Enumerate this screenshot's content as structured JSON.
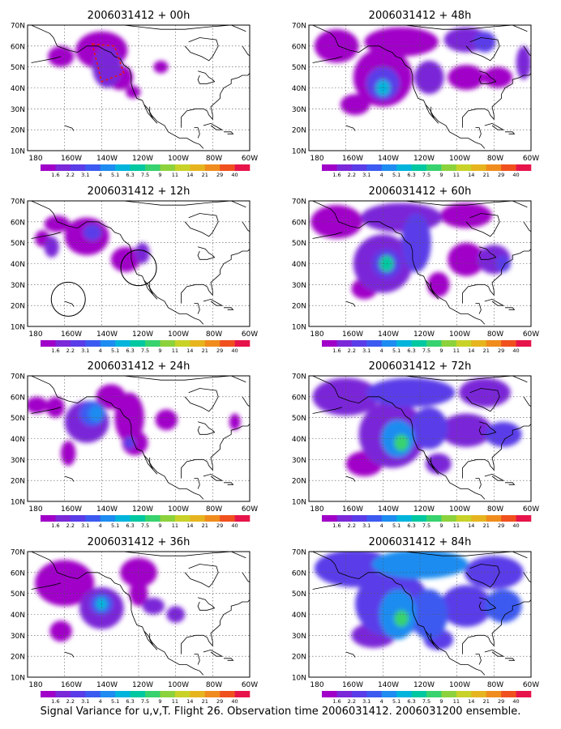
{
  "figure": {
    "caption": "Signal Variance for u,v,T. Flight 26. Observation time 2006031412. 2006031200 ensemble."
  },
  "axes": {
    "lat_ticks": [
      "10N",
      "20N",
      "30N",
      "40N",
      "50N",
      "60N",
      "70N"
    ],
    "lon_ticks": [
      "180",
      "160W",
      "140W",
      "120W",
      "100W",
      "80W",
      "60W"
    ]
  },
  "colorbar": {
    "labels": [
      "1.6",
      "2.2",
      "3.1",
      "4",
      "5.1",
      "6.3",
      "7.5",
      "9",
      "11",
      "14",
      "21",
      "29",
      "40"
    ],
    "colors": [
      "#a000c8",
      "#7a28d8",
      "#5a3ce8",
      "#3c5af0",
      "#1e8cf0",
      "#00b4dc",
      "#00c8a0",
      "#38d26e",
      "#8cd23c",
      "#c8d228",
      "#e6b41e",
      "#f08c1e",
      "#f0501e",
      "#e6144a"
    ]
  },
  "panels": [
    {
      "title": "2006031412 + 00h"
    },
    {
      "title": "2006031412 + 48h"
    },
    {
      "title": "2006031412 + 12h"
    },
    {
      "title": "2006031412 + 60h"
    },
    {
      "title": "2006031412 + 24h"
    },
    {
      "title": "2006031412 + 72h"
    },
    {
      "title": "2006031412 + 36h"
    },
    {
      "title": "2006031412 + 84h"
    }
  ]
}
